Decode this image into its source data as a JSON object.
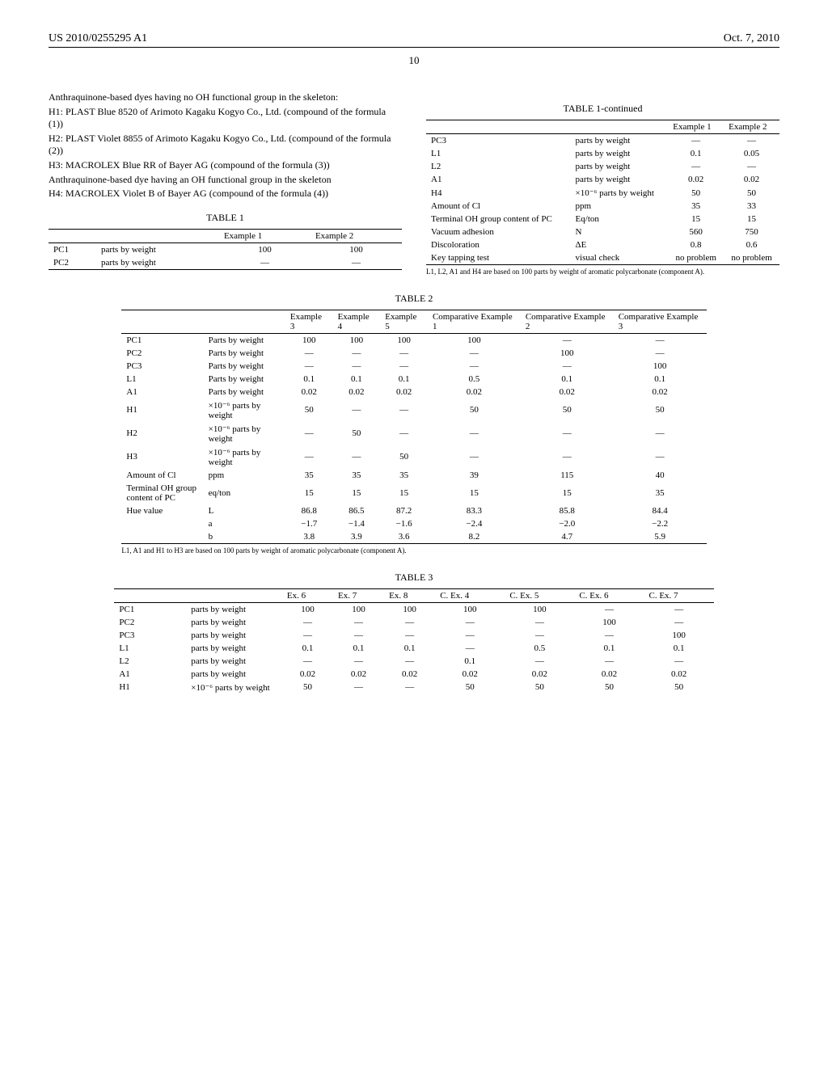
{
  "header": {
    "pub_number": "US 2010/0255295 A1",
    "date": "Oct. 7, 2010",
    "page": "10"
  },
  "left_text": {
    "line1": "Anthraquinone-based dyes having no OH functional group in the skeleton:",
    "line2": "H1: PLAST Blue 8520 of Arimoto Kagaku Kogyo Co., Ltd. (compound of the formula (1))",
    "line3": "H2: PLAST Violet 8855 of Arimoto Kagaku Kogyo Co., Ltd. (compound of the formula (2))",
    "line4": "H3: MACROLEX Blue RR of Bayer AG (compound of the formula (3))",
    "line5": "Anthraquinone-based dye having an OH functional group in the skeleton",
    "line6": "H4: MACROLEX Violet B of Bayer AG (compound of the formula (4))"
  },
  "table1": {
    "title": "TABLE 1",
    "headers": [
      "",
      "",
      "Example 1",
      "Example 2"
    ],
    "rows": [
      [
        "PC1",
        "parts by weight",
        "100",
        "100"
      ],
      [
        "PC2",
        "parts by weight",
        "—",
        "—"
      ]
    ]
  },
  "table1c": {
    "title": "TABLE 1-continued",
    "headers": [
      "",
      "",
      "Example 1",
      "Example 2"
    ],
    "rows": [
      [
        "PC3",
        "parts by weight",
        "—",
        "—"
      ],
      [
        "L1",
        "parts by weight",
        "0.1",
        "0.05"
      ],
      [
        "L2",
        "parts by weight",
        "—",
        "—"
      ],
      [
        "A1",
        "parts by weight",
        "0.02",
        "0.02"
      ],
      [
        "H4",
        "×10⁻⁶ parts by weight",
        "50",
        "50"
      ],
      [
        "Amount of Cl",
        "ppm",
        "35",
        "33"
      ],
      [
        "Terminal OH group content of PC",
        "Eq/ton",
        "15",
        "15"
      ],
      [
        "Vacuum adhesion",
        "N",
        "560",
        "750"
      ],
      [
        "Discoloration",
        "ΔE",
        "0.8",
        "0.6"
      ],
      [
        "Key tapping test",
        "visual check",
        "no problem",
        "no problem"
      ]
    ],
    "footnote": "L1, L2, A1 and H4 are based on 100 parts by weight of aromatic polycarbonate (component A)."
  },
  "table2": {
    "title": "TABLE 2",
    "headers": [
      "",
      "",
      "Example 3",
      "Example 4",
      "Example 5",
      "Comparative Example 1",
      "Comparative Example 2",
      "Comparative Example 3"
    ],
    "rows": [
      [
        "PC1",
        "Parts by weight",
        "100",
        "100",
        "100",
        "100",
        "—",
        "—"
      ],
      [
        "PC2",
        "Parts by weight",
        "—",
        "—",
        "—",
        "—",
        "100",
        "—"
      ],
      [
        "PC3",
        "Parts by weight",
        "—",
        "—",
        "—",
        "—",
        "—",
        "100"
      ],
      [
        "L1",
        "Parts by weight",
        "0.1",
        "0.1",
        "0.1",
        "0.5",
        "0.1",
        "0.1"
      ],
      [
        "A1",
        "Parts by weight",
        "0.02",
        "0.02",
        "0.02",
        "0.02",
        "0.02",
        "0.02"
      ],
      [
        "H1",
        "×10⁻⁶ parts by weight",
        "50",
        "—",
        "—",
        "50",
        "50",
        "50"
      ],
      [
        "H2",
        "×10⁻⁶ parts by weight",
        "—",
        "50",
        "—",
        "—",
        "—",
        "—"
      ],
      [
        "H3",
        "×10⁻⁶ parts by weight",
        "—",
        "—",
        "50",
        "—",
        "—",
        "—"
      ],
      [
        "Amount of Cl",
        "ppm",
        "35",
        "35",
        "35",
        "39",
        "115",
        "40"
      ],
      [
        "Terminal OH group content of PC",
        "eq/ton",
        "15",
        "15",
        "15",
        "15",
        "15",
        "35"
      ],
      [
        "Hue value",
        "L",
        "86.8",
        "86.5",
        "87.2",
        "83.3",
        "85.8",
        "84.4"
      ],
      [
        "",
        "a",
        "−1.7",
        "−1.4",
        "−1.6",
        "−2.4",
        "−2.0",
        "−2.2"
      ],
      [
        "",
        "b",
        "3.8",
        "3.9",
        "3.6",
        "8.2",
        "4.7",
        "5.9"
      ]
    ],
    "footnote": "L1, A1 and H1 to H3 are based on 100 parts by weight of aromatic polycarbonate (component A)."
  },
  "table3": {
    "title": "TABLE 3",
    "headers": [
      "",
      "",
      "Ex. 6",
      "Ex. 7",
      "Ex. 8",
      "C. Ex. 4",
      "C. Ex. 5",
      "C. Ex. 6",
      "C. Ex. 7"
    ],
    "rows": [
      [
        "PC1",
        "parts by weight",
        "100",
        "100",
        "100",
        "100",
        "100",
        "—",
        "—"
      ],
      [
        "PC2",
        "parts by weight",
        "—",
        "—",
        "—",
        "—",
        "—",
        "100",
        "—"
      ],
      [
        "PC3",
        "parts by weight",
        "—",
        "—",
        "—",
        "—",
        "—",
        "—",
        "100"
      ],
      [
        "L1",
        "parts by weight",
        "0.1",
        "0.1",
        "0.1",
        "—",
        "0.5",
        "0.1",
        "0.1"
      ],
      [
        "L2",
        "parts by weight",
        "—",
        "—",
        "—",
        "0.1",
        "—",
        "—",
        "—"
      ],
      [
        "A1",
        "parts by weight",
        "0.02",
        "0.02",
        "0.02",
        "0.02",
        "0.02",
        "0.02",
        "0.02"
      ],
      [
        "H1",
        "×10⁻⁶ parts by weight",
        "50",
        "—",
        "—",
        "50",
        "50",
        "50",
        "50"
      ]
    ]
  }
}
